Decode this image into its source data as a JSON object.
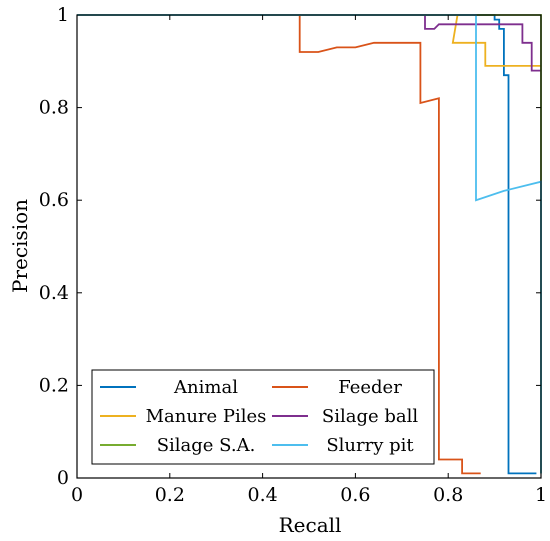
{
  "chart_data": {
    "type": "line",
    "title": "",
    "xlabel": "Recall",
    "ylabel": "Precision",
    "xlim": [
      0,
      1
    ],
    "ylim": [
      0,
      1
    ],
    "x_ticks": [
      "0",
      "0.2",
      "0.4",
      "0.6",
      "0.8",
      "1"
    ],
    "y_ticks": [
      "0",
      "0.2",
      "0.4",
      "0.6",
      "0.8",
      "1"
    ],
    "x_tick_values": [
      0,
      0.2,
      0.4,
      0.6,
      0.8,
      1
    ],
    "y_tick_values": [
      0,
      0.2,
      0.4,
      0.6,
      0.8,
      1
    ],
    "grid": false,
    "legend_placement": "bottom-left",
    "series": [
      {
        "name": "Animal",
        "color": "#0072BD",
        "points": [
          [
            0,
            1
          ],
          [
            0.9,
            1
          ],
          [
            0.9,
            0.99
          ],
          [
            0.91,
            0.99
          ],
          [
            0.91,
            0.97
          ],
          [
            0.92,
            0.97
          ],
          [
            0.92,
            0.87
          ],
          [
            0.93,
            0.87
          ],
          [
            0.93,
            0.85
          ],
          [
            0.93,
            0.01
          ],
          [
            0.99,
            0.01
          ]
        ]
      },
      {
        "name": "Feeder",
        "color": "#D95319",
        "points": [
          [
            0,
            1
          ],
          [
            0.48,
            1
          ],
          [
            0.48,
            0.92
          ],
          [
            0.52,
            0.92
          ],
          [
            0.56,
            0.93
          ],
          [
            0.6,
            0.93
          ],
          [
            0.64,
            0.94
          ],
          [
            0.74,
            0.94
          ],
          [
            0.74,
            0.81
          ],
          [
            0.78,
            0.82
          ],
          [
            0.78,
            0.04
          ],
          [
            0.83,
            0.04
          ],
          [
            0.83,
            0.01
          ],
          [
            0.87,
            0.01
          ]
        ]
      },
      {
        "name": "Manure Piles",
        "color": "#EDB120",
        "points": [
          [
            0,
            1
          ],
          [
            0.82,
            1
          ],
          [
            0.81,
            0.94
          ],
          [
            0.88,
            0.94
          ],
          [
            0.88,
            0.89
          ],
          [
            1.0,
            0.89
          ]
        ]
      },
      {
        "name": "Silage ball",
        "color": "#7E2F8E",
        "points": [
          [
            0,
            1
          ],
          [
            0.75,
            1
          ],
          [
            0.75,
            0.97
          ],
          [
            0.77,
            0.97
          ],
          [
            0.78,
            0.98
          ],
          [
            0.96,
            0.98
          ],
          [
            0.96,
            0.94
          ],
          [
            0.98,
            0.94
          ],
          [
            0.98,
            0.88
          ],
          [
            1.0,
            0.88
          ]
        ]
      },
      {
        "name": "Silage S.A.",
        "color": "#77AC30",
        "points": [
          [
            0,
            1
          ],
          [
            1.0,
            1
          ],
          [
            1.0,
            0.01
          ]
        ]
      },
      {
        "name": "Slurry pit",
        "color": "#4DBEEE",
        "points": [
          [
            0,
            1
          ],
          [
            0.86,
            1
          ],
          [
            0.86,
            0.6
          ],
          [
            0.92,
            0.62
          ],
          [
            1.0,
            0.64
          ],
          [
            1.0,
            0.01
          ]
        ]
      }
    ]
  }
}
